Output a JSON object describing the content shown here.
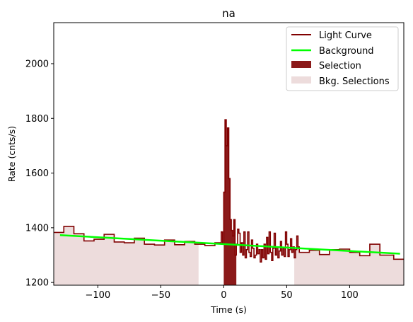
{
  "chart_data": {
    "type": "line",
    "title": "na",
    "xlabel": "Time (s)",
    "ylabel": "Rate (cnts/s)",
    "xlim": [
      -135,
      143
    ],
    "ylim": [
      1190,
      2150
    ],
    "x_ticks": [
      -100,
      -50,
      0,
      50,
      100
    ],
    "x_tick_labels": [
      "−100",
      "−50",
      "0",
      "50",
      "100"
    ],
    "y_ticks": [
      1200,
      1400,
      1600,
      1800,
      2000
    ],
    "y_tick_labels": [
      "1200",
      "1400",
      "1600",
      "1800",
      "2000"
    ],
    "legend_position": "top-right",
    "legend": [
      "Light Curve",
      "Background",
      "Selection",
      "Bkg. Selections"
    ],
    "colors": {
      "light_curve": "#800000",
      "background": "#00ff00",
      "selection": "#8b1a1a",
      "bkg_selection": "#eddcdc"
    },
    "light_curve": {
      "edges": [
        -135,
        -127,
        -119,
        -111,
        -103,
        -95,
        -87,
        -79,
        -71,
        -63,
        -55,
        -47,
        -39,
        -31,
        -23,
        -15,
        -7,
        -2,
        -1,
        0,
        1,
        2,
        3,
        4,
        5,
        6,
        7,
        8,
        9,
        10,
        11,
        12,
        13,
        14,
        15,
        16,
        17,
        18,
        19,
        20,
        21,
        22,
        23,
        24,
        25,
        26,
        27,
        28,
        29,
        30,
        31,
        32,
        33,
        34,
        35,
        36,
        37,
        38,
        39,
        40,
        41,
        42,
        43,
        44,
        45,
        46,
        47,
        48,
        49,
        50,
        51,
        52,
        53,
        54,
        55,
        56,
        57,
        58,
        59,
        60,
        68,
        76,
        84,
        92,
        100,
        108,
        116,
        124,
        135,
        143
      ],
      "rates": [
        1383,
        1405,
        1378,
        1352,
        1358,
        1376,
        1348,
        1345,
        1362,
        1340,
        1337,
        1355,
        1338,
        1350,
        1340,
        1335,
        1345,
        1385,
        1340,
        1530,
        1795,
        1700,
        1765,
        1580,
        1430,
        1390,
        1370,
        1430,
        1300,
        1340,
        1395,
        1380,
        1310,
        1345,
        1300,
        1385,
        1290,
        1320,
        1385,
        1310,
        1295,
        1355,
        1325,
        1290,
        1300,
        1340,
        1305,
        1320,
        1275,
        1320,
        1290,
        1340,
        1285,
        1365,
        1305,
        1385,
        1310,
        1280,
        1325,
        1380,
        1300,
        1330,
        1290,
        1315,
        1350,
        1300,
        1325,
        1295,
        1385,
        1340,
        1295,
        1320,
        1360,
        1310,
        1330,
        1290,
        1320,
        1370,
        1330,
        1310,
        1318,
        1302,
        1320,
        1322,
        1310,
        1298,
        1340,
        1300,
        1285
      ]
    },
    "background_line": {
      "x": [
        -130,
        140
      ],
      "y": [
        1373,
        1305
      ]
    },
    "selection_range": [
      0,
      10
    ],
    "bkg_selection_ranges": [
      [
        -135,
        -20
      ],
      [
        56,
        143
      ]
    ]
  }
}
